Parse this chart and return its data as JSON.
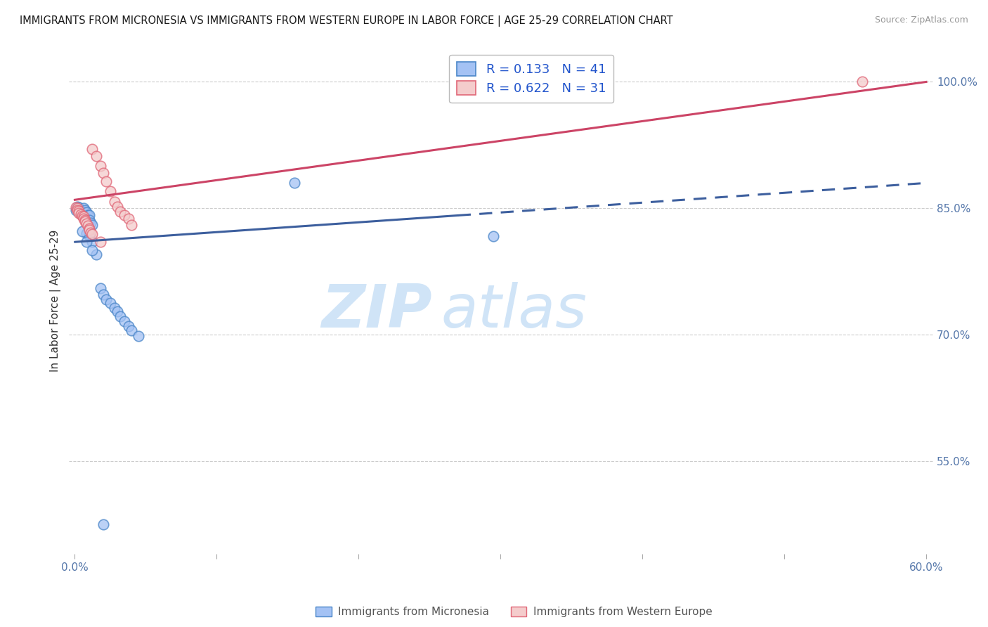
{
  "title": "IMMIGRANTS FROM MICRONESIA VS IMMIGRANTS FROM WESTERN EUROPE IN LABOR FORCE | AGE 25-29 CORRELATION CHART",
  "source": "Source: ZipAtlas.com",
  "ylabel": "In Labor Force | Age 25-29",
  "xlim": [
    0.0,
    0.6
  ],
  "ylim": [
    0.44,
    1.04
  ],
  "xticks": [
    0.0,
    0.1,
    0.2,
    0.3,
    0.4,
    0.5,
    0.6
  ],
  "xticklabels": [
    "0.0%",
    "",
    "",
    "",
    "",
    "",
    "60.0%"
  ],
  "ytick_vals": [
    0.55,
    0.7,
    0.85,
    1.0
  ],
  "yticklabels": [
    "55.0%",
    "70.0%",
    "85.0%",
    "100.0%"
  ],
  "legend_blue_label": "Immigrants from Micronesia",
  "legend_pink_label": "Immigrants from Western Europe",
  "R_blue": 0.133,
  "N_blue": 41,
  "R_pink": 0.622,
  "N_pink": 31,
  "blue_fill": "#a4c2f4",
  "blue_edge": "#4a86c8",
  "pink_fill": "#f4cccc",
  "pink_edge": "#e06677",
  "blue_line_color": "#3d5f9e",
  "pink_line_color": "#cc4466",
  "blue_line_solid_end": 0.27,
  "blue_line_x0": 0.0,
  "blue_line_y0": 0.81,
  "blue_line_x1": 0.6,
  "blue_line_y1": 0.88,
  "pink_line_x0": 0.0,
  "pink_line_y0": 0.86,
  "pink_line_x1": 0.6,
  "pink_line_y1": 1.0,
  "blue_x": [
    0.001,
    0.002,
    0.002,
    0.003,
    0.003,
    0.004,
    0.004,
    0.005,
    0.005,
    0.006,
    0.006,
    0.007,
    0.007,
    0.008,
    0.008,
    0.009,
    0.01,
    0.01,
    0.011,
    0.012,
    0.008,
    0.01,
    0.012,
    0.015,
    0.018,
    0.02,
    0.022,
    0.025,
    0.028,
    0.03,
    0.032,
    0.035,
    0.038,
    0.04,
    0.045,
    0.005,
    0.008,
    0.012,
    0.155,
    0.295,
    0.02
  ],
  "blue_y": [
    0.848,
    0.852,
    0.849,
    0.851,
    0.846,
    0.848,
    0.844,
    0.847,
    0.843,
    0.85,
    0.845,
    0.848,
    0.84,
    0.845,
    0.838,
    0.842,
    0.842,
    0.836,
    0.833,
    0.83,
    0.82,
    0.818,
    0.81,
    0.795,
    0.755,
    0.748,
    0.742,
    0.738,
    0.732,
    0.728,
    0.722,
    0.716,
    0.71,
    0.705,
    0.698,
    0.823,
    0.81,
    0.8,
    0.88,
    0.817,
    0.475
  ],
  "pink_x": [
    0.001,
    0.002,
    0.002,
    0.003,
    0.003,
    0.004,
    0.005,
    0.006,
    0.006,
    0.007,
    0.007,
    0.008,
    0.009,
    0.01,
    0.01,
    0.011,
    0.012,
    0.012,
    0.015,
    0.018,
    0.02,
    0.022,
    0.025,
    0.028,
    0.03,
    0.032,
    0.035,
    0.038,
    0.04,
    0.018,
    0.555
  ],
  "pink_y": [
    0.851,
    0.85,
    0.848,
    0.847,
    0.844,
    0.843,
    0.841,
    0.84,
    0.838,
    0.836,
    0.834,
    0.832,
    0.829,
    0.826,
    0.824,
    0.821,
    0.819,
    0.92,
    0.912,
    0.9,
    0.892,
    0.882,
    0.87,
    0.858,
    0.852,
    0.846,
    0.842,
    0.838,
    0.83,
    0.81,
    1.0
  ],
  "watermark_zip_color": "#d0e4f7",
  "watermark_atlas_color": "#d0e4f7",
  "grid_color": "#cccccc",
  "tick_color": "#5577aa"
}
